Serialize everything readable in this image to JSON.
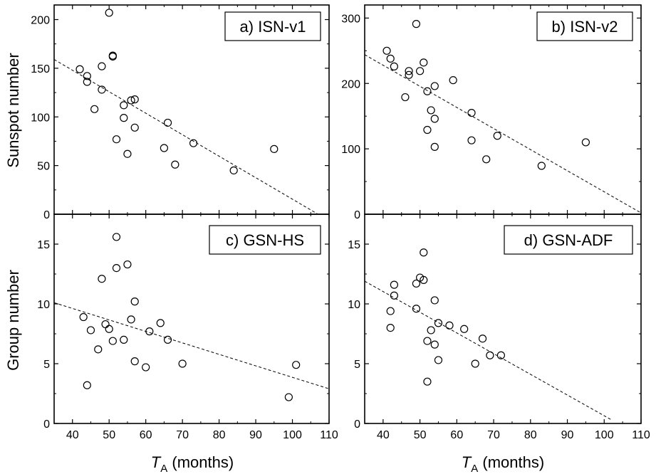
{
  "figure": {
    "ylabel_top": "Sunspot number",
    "ylabel_bottom": "Group number",
    "xlabel_main": "T",
    "xlabel_sub": "A",
    "xlabel_rest": " (months)"
  },
  "chart_data": [
    {
      "type": "scatter",
      "label": "a) ISN-v1",
      "xlim": [
        35,
        110
      ],
      "ylim": [
        0,
        215
      ],
      "xticks": [
        40,
        50,
        60,
        70,
        80,
        90,
        100,
        110
      ],
      "yticks": [
        0,
        50,
        100,
        150,
        200
      ],
      "points": [
        [
          42,
          149
        ],
        [
          44,
          142
        ],
        [
          44,
          136
        ],
        [
          46,
          108
        ],
        [
          48,
          152
        ],
        [
          48,
          128
        ],
        [
          50,
          207
        ],
        [
          51,
          163
        ],
        [
          51,
          162
        ],
        [
          52,
          77
        ],
        [
          54,
          112
        ],
        [
          54,
          99
        ],
        [
          55,
          62
        ],
        [
          56,
          117
        ],
        [
          57,
          118
        ],
        [
          57,
          89
        ],
        [
          65,
          68
        ],
        [
          66,
          94
        ],
        [
          68,
          51
        ],
        [
          73,
          73
        ],
        [
          84,
          45
        ],
        [
          95,
          67
        ]
      ],
      "trend": [
        [
          35,
          159
        ],
        [
          107,
          0
        ]
      ]
    },
    {
      "type": "scatter",
      "label": "b) ISN-v2",
      "xlim": [
        35,
        110
      ],
      "ylim": [
        0,
        320
      ],
      "xticks": [
        40,
        50,
        60,
        70,
        80,
        90,
        100,
        110
      ],
      "yticks": [
        0,
        100,
        200,
        300
      ],
      "points": [
        [
          41,
          250
        ],
        [
          42,
          238
        ],
        [
          43,
          226
        ],
        [
          46,
          179
        ],
        [
          47,
          219
        ],
        [
          47,
          213
        ],
        [
          49,
          291
        ],
        [
          50,
          219
        ],
        [
          51,
          232
        ],
        [
          52,
          188
        ],
        [
          52,
          129
        ],
        [
          53,
          159
        ],
        [
          54,
          196
        ],
        [
          54,
          146
        ],
        [
          54,
          103
        ],
        [
          59,
          205
        ],
        [
          64,
          155
        ],
        [
          64,
          113
        ],
        [
          68,
          84
        ],
        [
          71,
          120
        ],
        [
          83,
          74
        ],
        [
          95,
          110
        ]
      ],
      "trend": [
        [
          35,
          244
        ],
        [
          110,
          2
        ]
      ]
    },
    {
      "type": "scatter",
      "label": "c) GSN-HS",
      "xlim": [
        35,
        110
      ],
      "ylim": [
        0,
        17.5
      ],
      "xticks": [
        40,
        50,
        60,
        70,
        80,
        90,
        100,
        110
      ],
      "yticks": [
        0,
        5,
        10,
        15
      ],
      "points": [
        [
          43,
          8.9
        ],
        [
          44,
          3.2
        ],
        [
          45,
          7.8
        ],
        [
          47,
          6.2
        ],
        [
          48,
          12.1
        ],
        [
          49,
          8.3
        ],
        [
          50,
          7.9
        ],
        [
          51,
          6.9
        ],
        [
          52,
          15.6
        ],
        [
          52,
          13.0
        ],
        [
          54,
          7.0
        ],
        [
          55,
          13.3
        ],
        [
          56,
          8.7
        ],
        [
          57,
          10.2
        ],
        [
          57,
          5.2
        ],
        [
          60,
          4.7
        ],
        [
          61,
          7.7
        ],
        [
          64,
          8.4
        ],
        [
          66,
          7.0
        ],
        [
          70,
          5.0
        ],
        [
          99,
          2.2
        ],
        [
          101,
          4.9
        ]
      ],
      "trend": [
        [
          35,
          10.1
        ],
        [
          110,
          2.9
        ]
      ]
    },
    {
      "type": "scatter",
      "label": "d) GSN-ADF",
      "xlim": [
        35,
        110
      ],
      "ylim": [
        0,
        17.5
      ],
      "xticks": [
        40,
        50,
        60,
        70,
        80,
        90,
        100,
        110
      ],
      "yticks": [
        0,
        5,
        10,
        15
      ],
      "points": [
        [
          42,
          9.4
        ],
        [
          42,
          8.0
        ],
        [
          43,
          11.6
        ],
        [
          43,
          10.7
        ],
        [
          49,
          11.7
        ],
        [
          49,
          9.6
        ],
        [
          50,
          12.2
        ],
        [
          51,
          14.3
        ],
        [
          51,
          12.0
        ],
        [
          52,
          6.9
        ],
        [
          52,
          3.5
        ],
        [
          53,
          7.8
        ],
        [
          54,
          10.3
        ],
        [
          54,
          6.6
        ],
        [
          55,
          8.4
        ],
        [
          55,
          5.3
        ],
        [
          58,
          8.2
        ],
        [
          62,
          7.9
        ],
        [
          65,
          5.0
        ],
        [
          67,
          7.1
        ],
        [
          69,
          5.7
        ],
        [
          72,
          5.7
        ]
      ],
      "trend": [
        [
          35,
          11.9
        ],
        [
          102,
          0.3
        ]
      ]
    }
  ]
}
